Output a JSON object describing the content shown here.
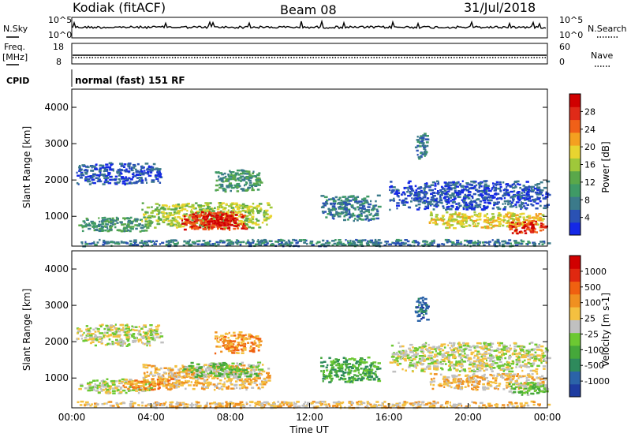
{
  "header": {
    "station": "Kodiak (fitACF)",
    "beam": "Beam 08",
    "date": "31/Jul/2018"
  },
  "status_panels": {
    "nsky_label": "N.Sky",
    "nsky_ticks": [
      "10^5",
      "10^0"
    ],
    "nsearch_label": "N.Search",
    "nsearch_ticks": [
      "10^5",
      "10^0"
    ],
    "freq_label_line1": "Freq.",
    "freq_label_line2": "[MHz]",
    "freq_ticks": [
      "18",
      "8"
    ],
    "nave_label": "Nave",
    "nave_ticks": [
      "60",
      "0"
    ],
    "cpid_label": "CPID",
    "cpid_text": "normal (fast) 151 RF"
  },
  "chart_data": [
    {
      "type": "heatmap",
      "title": "",
      "ylabel": "Slant Range [km]",
      "xlabel": "",
      "ylim": [
        180,
        4500
      ],
      "yticks": [
        "4000",
        "3000",
        "2000",
        "1000"
      ],
      "yticks_values": [
        4000,
        3000,
        2000,
        1000
      ],
      "x_range_hours": [
        0,
        24
      ],
      "colorbar": {
        "label": "Power [dB]",
        "ticks": [
          "28",
          "24",
          "20",
          "16",
          "12",
          "8",
          "4"
        ],
        "colors": [
          "#1428e6",
          "#2a52b4",
          "#3b7a8a",
          "#3f9a66",
          "#5aa84a",
          "#9fc83a",
          "#e8d430",
          "#f4a020",
          "#f06018",
          "#e02a18",
          "#d00000"
        ]
      },
      "echo_regions": [
        {
          "t0": 0.3,
          "t1": 4.0,
          "r0": 600,
          "r1": 1000,
          "level": 3
        },
        {
          "t0": 3.5,
          "t1": 10.0,
          "r0": 700,
          "r1": 1400,
          "level": 5
        },
        {
          "t0": 5.5,
          "t1": 8.8,
          "r0": 650,
          "r1": 1150,
          "level": 9
        },
        {
          "t0": 6.6,
          "t1": 8.2,
          "r0": 750,
          "r1": 1100,
          "level": 10
        },
        {
          "t0": 0.2,
          "t1": 4.5,
          "r0": 1900,
          "r1": 2500,
          "level": 1
        },
        {
          "t0": 7.2,
          "t1": 9.5,
          "r0": 1700,
          "r1": 2300,
          "level": 3
        },
        {
          "t0": 12.5,
          "t1": 15.5,
          "r0": 900,
          "r1": 1600,
          "level": 2
        },
        {
          "t0": 17.3,
          "t1": 17.9,
          "r0": 2600,
          "r1": 3300,
          "level": 2
        },
        {
          "t0": 16.0,
          "t1": 24.0,
          "r0": 1200,
          "r1": 2000,
          "level": 1
        },
        {
          "t0": 18.0,
          "t1": 23.8,
          "r0": 700,
          "r1": 1150,
          "level": 6
        },
        {
          "t0": 22.0,
          "t1": 24.0,
          "r0": 550,
          "r1": 900,
          "level": 9
        },
        {
          "t0": 0.0,
          "t1": 24.0,
          "r0": 200,
          "r1": 380,
          "level": 2
        }
      ]
    },
    {
      "type": "heatmap",
      "title": "",
      "ylabel": "Slant Range [km]",
      "xlabel": "Time UT",
      "ylim": [
        180,
        4500
      ],
      "yticks": [
        "4000",
        "3000",
        "2000",
        "1000"
      ],
      "yticks_values": [
        4000,
        3000,
        2000,
        1000
      ],
      "xticks": [
        "00:00",
        "04:00",
        "08:00",
        "12:00",
        "16:00",
        "20:00",
        "00:00"
      ],
      "xticks_values": [
        0,
        4,
        8,
        12,
        16,
        20,
        24
      ],
      "colorbar": {
        "label": "Velocity [m s-1]",
        "ticks": [
          "1000",
          "500",
          "100",
          "25",
          "-25",
          "-100",
          "-500",
          "-1000"
        ],
        "colors": [
          "#1e3ca0",
          "#2b63a8",
          "#2e8a5c",
          "#45a83a",
          "#6cc832",
          "#c0c0c0",
          "#f4c040",
          "#f09020",
          "#f06010",
          "#e02810",
          "#d00000"
        ]
      },
      "echo_regions": [
        {
          "t0": 0.3,
          "t1": 4.0,
          "r0": 600,
          "r1": 1000,
          "level": 5
        },
        {
          "t0": 3.5,
          "t1": 10.0,
          "r0": 700,
          "r1": 1400,
          "level": 6
        },
        {
          "t0": 5.5,
          "t1": 9.5,
          "r0": 1050,
          "r1": 1450,
          "level": 4
        },
        {
          "t0": 2.5,
          "t1": 5.0,
          "r0": 700,
          "r1": 1000,
          "level": 7
        },
        {
          "t0": 0.2,
          "t1": 4.5,
          "r0": 1900,
          "r1": 2500,
          "level": 5
        },
        {
          "t0": 7.2,
          "t1": 9.5,
          "r0": 1700,
          "r1": 2300,
          "level": 7
        },
        {
          "t0": 12.5,
          "t1": 15.5,
          "r0": 900,
          "r1": 1600,
          "level": 3
        },
        {
          "t0": 17.3,
          "t1": 17.9,
          "r0": 2600,
          "r1": 3300,
          "level": 1
        },
        {
          "t0": 16.0,
          "t1": 24.0,
          "r0": 1200,
          "r1": 2000,
          "level": 5
        },
        {
          "t0": 18.0,
          "t1": 23.8,
          "r0": 700,
          "r1": 1150,
          "level": 6
        },
        {
          "t0": 22.0,
          "t1": 24.0,
          "r0": 550,
          "r1": 900,
          "level": 4
        },
        {
          "t0": 0.0,
          "t1": 24.0,
          "r0": 200,
          "r1": 380,
          "level": 6
        }
      ]
    }
  ]
}
